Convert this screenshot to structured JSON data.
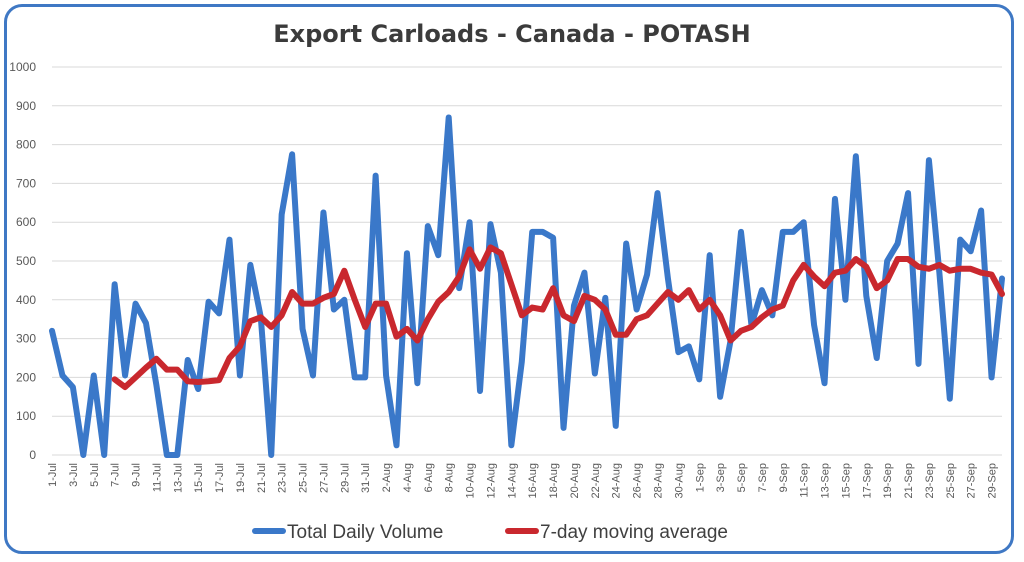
{
  "chart_data": {
    "type": "line",
    "title": "Export Carloads - Canada - POTASH",
    "xlabel": "",
    "ylabel": "",
    "ylim": [
      0,
      1000
    ],
    "yticks": [
      0,
      100,
      200,
      300,
      400,
      500,
      600,
      700,
      800,
      900,
      1000
    ],
    "grid": true,
    "legend_position": "bottom",
    "x": [
      "1-Jul",
      "2-Jul",
      "3-Jul",
      "4-Jul",
      "5-Jul",
      "6-Jul",
      "7-Jul",
      "8-Jul",
      "9-Jul",
      "10-Jul",
      "11-Jul",
      "12-Jul",
      "13-Jul",
      "14-Jul",
      "15-Jul",
      "16-Jul",
      "17-Jul",
      "18-Jul",
      "19-Jul",
      "20-Jul",
      "21-Jul",
      "22-Jul",
      "23-Jul",
      "24-Jul",
      "25-Jul",
      "26-Jul",
      "27-Jul",
      "28-Jul",
      "29-Jul",
      "30-Jul",
      "31-Jul",
      "1-Aug",
      "2-Aug",
      "3-Aug",
      "4-Aug",
      "5-Aug",
      "6-Aug",
      "7-Aug",
      "8-Aug",
      "9-Aug",
      "10-Aug",
      "11-Aug",
      "12-Aug",
      "13-Aug",
      "14-Aug",
      "15-Aug",
      "16-Aug",
      "17-Aug",
      "18-Aug",
      "19-Aug",
      "20-Aug",
      "21-Aug",
      "22-Aug",
      "23-Aug",
      "24-Aug",
      "25-Aug",
      "26-Aug",
      "27-Aug",
      "28-Aug",
      "29-Aug",
      "30-Aug",
      "31-Aug",
      "1-Sep",
      "2-Sep",
      "3-Sep",
      "4-Sep",
      "5-Sep",
      "6-Sep",
      "7-Sep",
      "8-Sep",
      "9-Sep",
      "10-Sep",
      "11-Sep",
      "12-Sep",
      "13-Sep",
      "14-Sep",
      "15-Sep",
      "16-Sep",
      "17-Sep",
      "18-Sep",
      "19-Sep",
      "20-Sep",
      "21-Sep",
      "22-Sep",
      "23-Sep",
      "24-Sep",
      "25-Sep",
      "26-Sep",
      "27-Sep",
      "28-Sep",
      "29-Sep",
      "30-Sep"
    ],
    "xtick_labels": [
      "1-Jul",
      "3-Jul",
      "5-Jul",
      "7-Jul",
      "9-Jul",
      "11-Jul",
      "13-Jul",
      "15-Jul",
      "17-Jul",
      "19-Jul",
      "21-Jul",
      "23-Jul",
      "25-Jul",
      "27-Jul",
      "29-Jul",
      "31-Jul",
      "2-Aug",
      "4-Aug",
      "6-Aug",
      "8-Aug",
      "10-Aug",
      "12-Aug",
      "14-Aug",
      "16-Aug",
      "18-Aug",
      "20-Aug",
      "22-Aug",
      "24-Aug",
      "26-Aug",
      "28-Aug",
      "30-Aug",
      "1-Sep",
      "3-Sep",
      "5-Sep",
      "7-Sep",
      "9-Sep",
      "11-Sep",
      "13-Sep",
      "15-Sep",
      "17-Sep",
      "19-Sep",
      "21-Sep",
      "23-Sep",
      "25-Sep",
      "27-Sep",
      "29-Sep"
    ],
    "series": [
      {
        "name": "Total Daily Volume",
        "color": "#3a78c9",
        "values": [
          320,
          205,
          175,
          0,
          205,
          0,
          440,
          205,
          390,
          340,
          180,
          0,
          0,
          245,
          170,
          395,
          365,
          555,
          205,
          490,
          355,
          0,
          620,
          775,
          325,
          205,
          625,
          375,
          400,
          200,
          200,
          720,
          205,
          25,
          520,
          185,
          590,
          515,
          870,
          430,
          600,
          165,
          595,
          470,
          25,
          240,
          575,
          575,
          560,
          70,
          385,
          470,
          210,
          405,
          75,
          545,
          375,
          465,
          675,
          455,
          265,
          280,
          195,
          515,
          150,
          295,
          575,
          335,
          425,
          360,
          575,
          575,
          600,
          335,
          185,
          660,
          400,
          770,
          410,
          250,
          500,
          545,
          675,
          235,
          760,
          470,
          145,
          555,
          525,
          630,
          200,
          455
        ]
      },
      {
        "name": "7-day moving average",
        "color": "#c9282e",
        "values": [
          null,
          null,
          null,
          null,
          null,
          null,
          195,
          175,
          200,
          225,
          248,
          220,
          220,
          190,
          188,
          190,
          193,
          250,
          280,
          345,
          355,
          330,
          360,
          420,
          390,
          390,
          405,
          415,
          475,
          400,
          330,
          390,
          390,
          305,
          325,
          295,
          350,
          395,
          420,
          460,
          530,
          480,
          535,
          520,
          440,
          360,
          380,
          375,
          430,
          360,
          345,
          410,
          400,
          375,
          310,
          310,
          350,
          360,
          390,
          420,
          400,
          425,
          375,
          400,
          360,
          295,
          320,
          330,
          355,
          375,
          385,
          450,
          490,
          460,
          435,
          470,
          475,
          505,
          485,
          430,
          450,
          505,
          505,
          485,
          480,
          490,
          475,
          480,
          480,
          470,
          465,
          415
        ]
      }
    ]
  }
}
